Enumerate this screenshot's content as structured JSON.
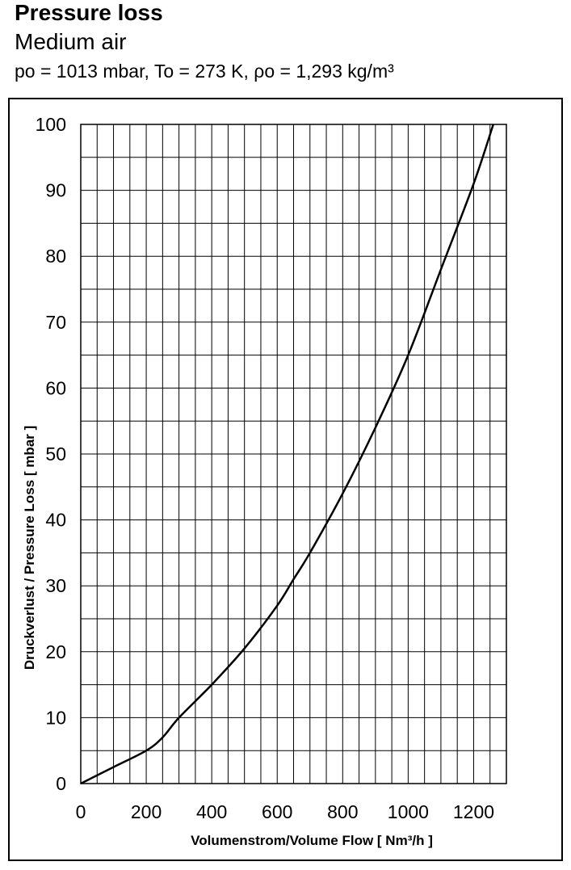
{
  "header": {
    "title": "Pressure loss",
    "subtitle": "Medium air",
    "params": "po = 1013 mbar, To = 273 K, ρo = 1,293 kg/m³"
  },
  "chart_data": {
    "type": "line",
    "xlabel": "Volumenstrom/Volume Flow [ Nm³/h ]",
    "ylabel": "Druckverlust / Pressure Loss [ mbar ]",
    "xlim": [
      0,
      1300
    ],
    "ylim": [
      0,
      100
    ],
    "x_ticks": [
      0,
      200,
      400,
      600,
      800,
      1000,
      1200
    ],
    "y_ticks": [
      0,
      10,
      20,
      30,
      40,
      50,
      60,
      70,
      80,
      90,
      100
    ],
    "x_grid_step": 50,
    "y_grid_step": 5,
    "grid": true,
    "series": [
      {
        "color": "#000000",
        "x": [
          0,
          100,
          200,
          250,
          300,
          400,
          500,
          600,
          650,
          700,
          800,
          900,
          1000,
          1100,
          1200,
          1260
        ],
        "y": [
          0,
          2.5,
          5,
          7,
          10,
          15,
          20.5,
          27,
          31,
          35,
          44,
          54,
          65,
          78,
          91,
          100
        ]
      }
    ]
  }
}
